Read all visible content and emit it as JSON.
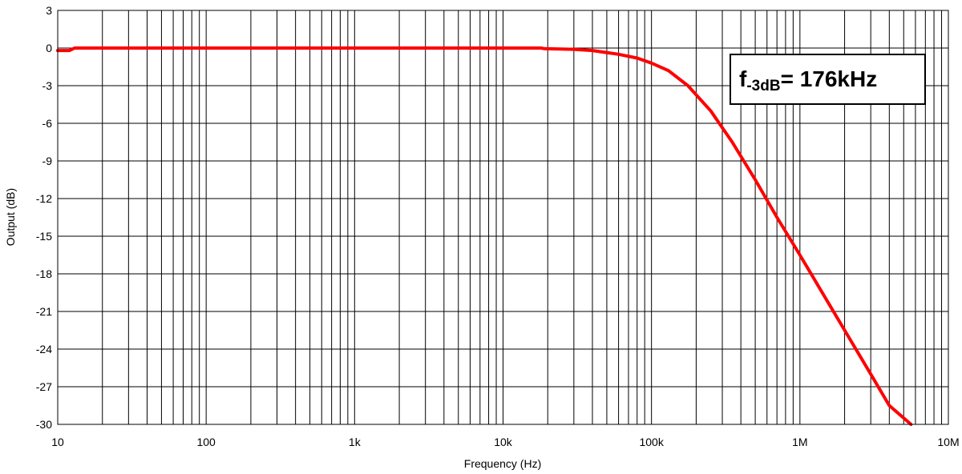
{
  "chart_data": {
    "type": "line",
    "xlabel": "Frequency (Hz)",
    "ylabel": "Output (dB)",
    "xscale": "log",
    "xlim": [
      10,
      10000000
    ],
    "ylim": [
      -30,
      3
    ],
    "grid": true,
    "x_tick_labels": [
      "10",
      "100",
      "1k",
      "10k",
      "100k",
      "1M",
      "10M"
    ],
    "y_ticks": [
      3,
      0,
      -3,
      -6,
      -9,
      -12,
      -15,
      -18,
      -21,
      -24,
      -27,
      -30
    ],
    "series": [
      {
        "color": "#ff0000",
        "x": [
          10,
          12,
          13,
          15,
          30,
          100,
          1000,
          10000,
          18000,
          19000,
          30000,
          40000,
          60000,
          80000,
          100000,
          130000,
          176000,
          250000,
          350000,
          500000,
          700000,
          1000000,
          2000000,
          3000000,
          4000000,
          5600000
        ],
        "y": [
          -0.2,
          -0.2,
          0,
          0,
          0,
          0,
          0,
          0,
          0,
          -0.05,
          -0.1,
          -0.2,
          -0.5,
          -0.8,
          -1.2,
          -1.8,
          -3,
          -5,
          -7.5,
          -10.5,
          -13.5,
          -16.5,
          -22.5,
          -26,
          -28.5,
          -30
        ]
      }
    ],
    "annotation": {
      "prefix": "f",
      "subscript": "-3dB",
      "text": "= 176kHz"
    }
  }
}
